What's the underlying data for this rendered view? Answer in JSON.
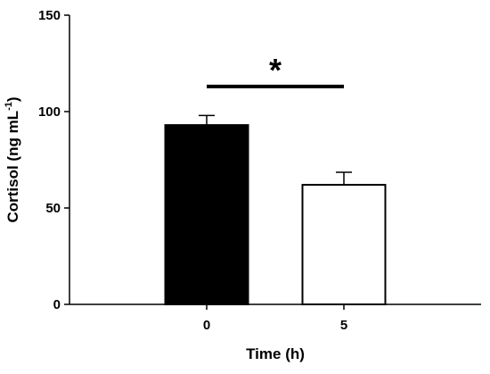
{
  "chart_data": {
    "type": "bar",
    "title": "",
    "xlabel": "Time (h)",
    "ylabel": {
      "main": "Cortisol (ng mL",
      "superscript": "-1",
      "close": ")"
    },
    "categories": [
      "0",
      "5"
    ],
    "values": [
      93,
      62
    ],
    "errors": [
      5,
      6.5
    ],
    "bar_fill": [
      "#000000",
      "#ffffff"
    ],
    "bar_stroke": "#000000",
    "ylim": [
      0,
      150
    ],
    "yticks": [
      0,
      50,
      100,
      150
    ],
    "xlim": [
      -1.5,
      1.5
    ],
    "grid": false,
    "significance": {
      "label": "*",
      "between": [
        0,
        1
      ],
      "y": 113
    }
  }
}
